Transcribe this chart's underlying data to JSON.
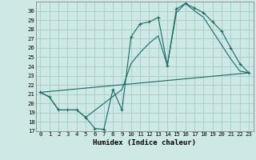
{
  "title": "",
  "xlabel": "Humidex (Indice chaleur)",
  "bg_color": "#cde8e5",
  "grid_color": "#aacfcc",
  "line_color": "#1a6b63",
  "xlim": [
    -0.5,
    23.5
  ],
  "ylim": [
    17,
    31
  ],
  "yticks": [
    17,
    18,
    19,
    20,
    21,
    22,
    23,
    24,
    25,
    26,
    27,
    28,
    29,
    30
  ],
  "xticks": [
    0,
    1,
    2,
    3,
    4,
    5,
    6,
    7,
    8,
    9,
    10,
    11,
    12,
    13,
    14,
    15,
    16,
    17,
    18,
    19,
    20,
    21,
    22,
    23
  ],
  "curve1_x": [
    0,
    1,
    2,
    3,
    4,
    5,
    6,
    7,
    8,
    9,
    10,
    11,
    12,
    13,
    14,
    15,
    16,
    17,
    18,
    19,
    20,
    21,
    22,
    23
  ],
  "curve1_y": [
    21.2,
    20.7,
    19.3,
    19.3,
    19.3,
    18.5,
    17.3,
    17.2,
    21.5,
    19.3,
    27.2,
    28.6,
    28.8,
    29.3,
    24.1,
    30.2,
    30.8,
    30.3,
    29.8,
    28.8,
    27.8,
    26.0,
    24.3,
    23.3
  ],
  "curve2_x": [
    0,
    23
  ],
  "curve2_y": [
    21.2,
    23.3
  ],
  "curve3_x": [
    0,
    1,
    2,
    3,
    4,
    5,
    9,
    10,
    11,
    12,
    13,
    14,
    15,
    16,
    17,
    18,
    19,
    20,
    21,
    22,
    23
  ],
  "curve3_y": [
    21.2,
    20.7,
    19.3,
    19.3,
    19.3,
    18.5,
    21.5,
    24.3,
    25.5,
    26.5,
    27.3,
    24.1,
    29.8,
    30.8,
    30.0,
    29.3,
    27.8,
    26.3,
    24.8,
    23.5,
    23.3
  ]
}
